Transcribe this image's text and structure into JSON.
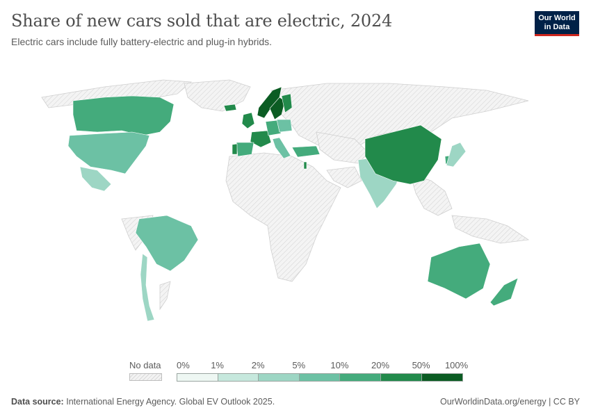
{
  "header": {
    "title": "Share of new cars sold that are electric, 2024",
    "subtitle": "Electric cars include fully battery-electric and plug-in hybrids."
  },
  "logo": {
    "line1": "Our World",
    "line2": "in Data"
  },
  "legend": {
    "no_data_label": "No data",
    "ticks": [
      "0%",
      "1%",
      "2%",
      "5%",
      "10%",
      "20%",
      "50%",
      "100%"
    ],
    "colors": [
      "#eef7f3",
      "#c6e8dd",
      "#9dd6c4",
      "#6cc1a4",
      "#44ab7c",
      "#228a4b",
      "#0b5c23"
    ],
    "no_data_color": "#ebebeb"
  },
  "chart_data": {
    "type": "choropleth",
    "metric": "Share of new cars sold that are electric",
    "year": 2024,
    "bins": [
      "0–1%",
      "1–2%",
      "2–5%",
      "5–10%",
      "10–20%",
      "20–50%",
      "50–100%"
    ],
    "regions": [
      {
        "name": "Canada",
        "bin": 4
      },
      {
        "name": "United States",
        "bin": 3
      },
      {
        "name": "Mexico",
        "bin": 2
      },
      {
        "name": "Brazil",
        "bin": 3
      },
      {
        "name": "Chile",
        "bin": 2
      },
      {
        "name": "United Kingdom",
        "bin": 5
      },
      {
        "name": "France",
        "bin": 5
      },
      {
        "name": "Spain",
        "bin": 4
      },
      {
        "name": "Portugal",
        "bin": 5
      },
      {
        "name": "Germany",
        "bin": 4
      },
      {
        "name": "Italy",
        "bin": 3
      },
      {
        "name": "Poland",
        "bin": 3
      },
      {
        "name": "Norway",
        "bin": 6
      },
      {
        "name": "Sweden",
        "bin": 6
      },
      {
        "name": "Finland",
        "bin": 5
      },
      {
        "name": "Iceland",
        "bin": 5
      },
      {
        "name": "Turkey",
        "bin": 4
      },
      {
        "name": "Israel",
        "bin": 5
      },
      {
        "name": "India",
        "bin": 2
      },
      {
        "name": "China",
        "bin": 5
      },
      {
        "name": "South Korea",
        "bin": 4
      },
      {
        "name": "Japan",
        "bin": 2
      },
      {
        "name": "Australia",
        "bin": 4
      },
      {
        "name": "New Zealand",
        "bin": 4
      }
    ]
  },
  "footer": {
    "source_label": "Data source:",
    "source_text": "International Energy Agency. Global EV Outlook 2025.",
    "url": "OurWorldinData.org/energy | CC BY"
  }
}
